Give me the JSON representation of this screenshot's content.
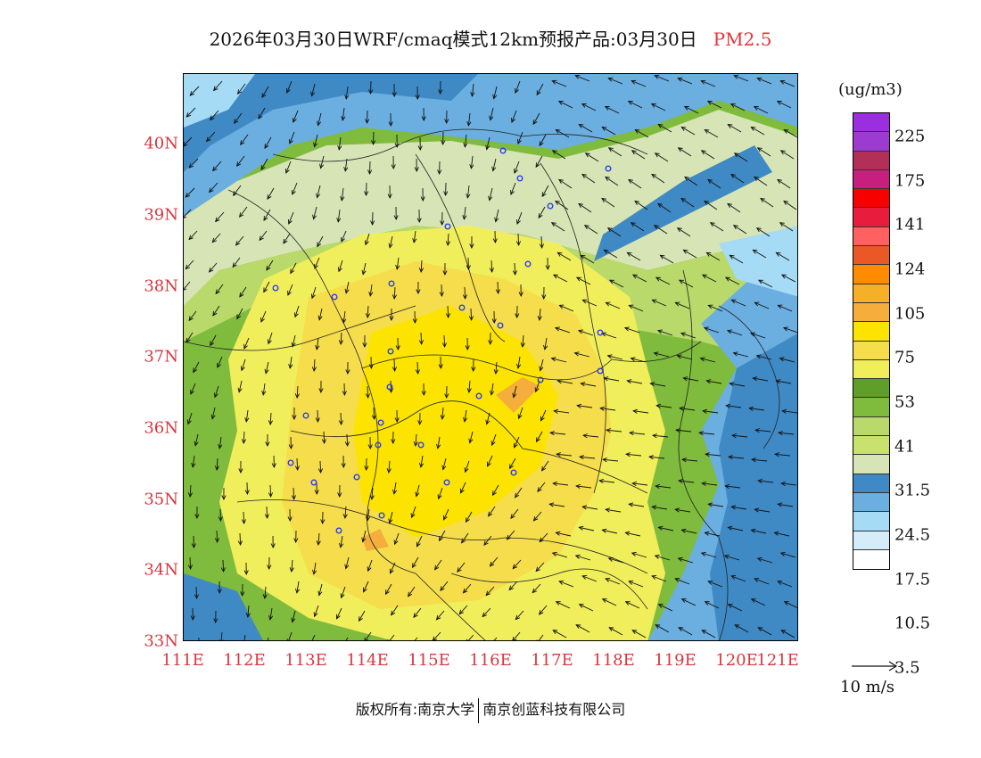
{
  "title": {
    "main": "2026年03月30日WRF/cmaq模式12km预报产品:03月30日",
    "variable": "PM2.5"
  },
  "lat_labels": [
    "40N",
    "39N",
    "38N",
    "37N",
    "36N",
    "35N",
    "34N",
    "33N"
  ],
  "lon_labels": [
    "111E",
    "112E",
    "113E",
    "114E",
    "115E",
    "116E",
    "117E",
    "118E",
    "119E",
    "120E",
    "121E"
  ],
  "legend": {
    "units": "(ug/m3)",
    "colors": [
      "#9a2fe0",
      "#9b3bcf",
      "#b23058",
      "#c71f7e",
      "#f70000",
      "#e81c3c",
      "#ff6161",
      "#ea5826",
      "#ff8c00",
      "#f5b028",
      "#f5ad3c",
      "#fce300",
      "#f6dd4b",
      "#f1ee5c",
      "#5e9f2a",
      "#7fbb3c",
      "#b9d96a",
      "#c8e16f",
      "#d7e5b6",
      "#3f8ac5",
      "#6baee0",
      "#a5dbf5",
      "#d5edf9",
      "#ffffff"
    ],
    "labels": [
      "225",
      "175",
      "141",
      "124",
      "105",
      "75",
      "53",
      "41",
      "31.5",
      "24.5",
      "17.5",
      "10.5",
      "3.5"
    ]
  },
  "reference_vector": {
    "label": "10 m/s"
  },
  "footer": {
    "left": "版权所有:南京大学",
    "right": "南京创蓝科技有限公司"
  }
}
